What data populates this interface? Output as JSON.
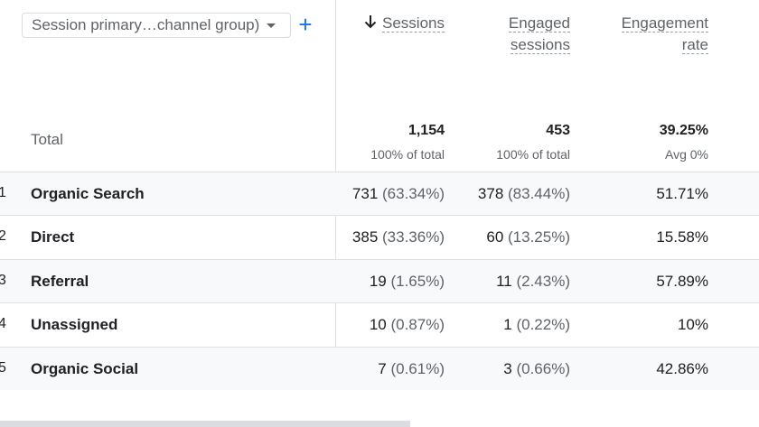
{
  "toolbar": {
    "dimension_label": "Session primary…channel group)",
    "add_label": "+"
  },
  "columns": {
    "sessions": "Sessions",
    "engaged_line1": "Engaged",
    "engaged_line2": "sessions",
    "rate_line1": "Engagement",
    "rate_line2": "rate"
  },
  "total": {
    "label": "Total",
    "sessions": "1,154",
    "sessions_sub": "100% of total",
    "engaged": "453",
    "engaged_sub": "100% of total",
    "rate": "39.25%",
    "rate_sub": "Avg 0%"
  },
  "rows": [
    {
      "idx": "1",
      "name": "Organic Search",
      "sessions": "731",
      "sessions_pct": "(63.34%)",
      "engaged": "378",
      "engaged_pct": "(83.44%)",
      "rate": "51.71%"
    },
    {
      "idx": "2",
      "name": "Direct",
      "sessions": "385",
      "sessions_pct": "(33.36%)",
      "engaged": "60",
      "engaged_pct": "(13.25%)",
      "rate": "15.58%"
    },
    {
      "idx": "3",
      "name": "Referral",
      "sessions": "19",
      "sessions_pct": "(1.65%)",
      "engaged": "11",
      "engaged_pct": "(2.43%)",
      "rate": "57.89%"
    },
    {
      "idx": "4",
      "name": "Unassigned",
      "sessions": "10",
      "sessions_pct": "(0.87%)",
      "engaged": "1",
      "engaged_pct": "(0.22%)",
      "rate": "10%"
    },
    {
      "idx": "5",
      "name": "Organic Social",
      "sessions": "7",
      "sessions_pct": "(0.61%)",
      "engaged": "3",
      "engaged_pct": "(0.66%)",
      "rate": "42.86%"
    }
  ]
}
